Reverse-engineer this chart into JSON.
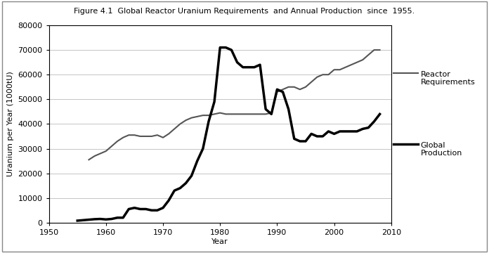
{
  "title": "Figure 4.1  Global Reactor Uranium Requirements  and Annual Production  since  1955.",
  "xlabel": "Year",
  "ylabel": "Uranium per Year (1000tU)",
  "xlim": [
    1950,
    2010
  ],
  "ylim": [
    0,
    80000
  ],
  "yticks": [
    0,
    10000,
    20000,
    30000,
    40000,
    50000,
    60000,
    70000,
    80000
  ],
  "xticks": [
    1950,
    1960,
    1970,
    1980,
    1990,
    2000,
    2010
  ],
  "reactor_requirements": {
    "years": [
      1957,
      1958,
      1959,
      1960,
      1961,
      1962,
      1963,
      1964,
      1965,
      1966,
      1967,
      1968,
      1969,
      1970,
      1971,
      1972,
      1973,
      1974,
      1975,
      1976,
      1977,
      1978,
      1979,
      1980,
      1981,
      1982,
      1983,
      1984,
      1985,
      1986,
      1987,
      1988,
      1989,
      1990,
      1991,
      1992,
      1993,
      1994,
      1995,
      1996,
      1997,
      1998,
      1999,
      2000,
      2001,
      2002,
      2003,
      2004,
      2005,
      2006,
      2007,
      2008
    ],
    "values": [
      25500,
      27000,
      28000,
      29000,
      31000,
      33000,
      34500,
      35500,
      35500,
      35000,
      35000,
      35000,
      35500,
      34500,
      36000,
      38000,
      40000,
      41500,
      42500,
      43000,
      43500,
      43500,
      44000,
      44500,
      44000,
      44000,
      44000,
      44000,
      44000,
      44000,
      44000,
      44000,
      44500,
      53000,
      54000,
      55000,
      55000,
      54000,
      55000,
      57000,
      59000,
      60000,
      60000,
      62000,
      62000,
      63000,
      64000,
      65000,
      66000,
      68000,
      70000,
      70000
    ],
    "color": "#555555",
    "linewidth": 1.5,
    "label": "Reactor\nRequirements"
  },
  "global_production": {
    "years": [
      1955,
      1956,
      1957,
      1958,
      1959,
      1960,
      1961,
      1962,
      1963,
      1964,
      1965,
      1966,
      1967,
      1968,
      1969,
      1970,
      1971,
      1972,
      1973,
      1974,
      1975,
      1976,
      1977,
      1978,
      1979,
      1980,
      1981,
      1982,
      1983,
      1984,
      1985,
      1986,
      1987,
      1988,
      1989,
      1990,
      1991,
      1992,
      1993,
      1994,
      1995,
      1996,
      1997,
      1998,
      1999,
      2000,
      2001,
      2002,
      2003,
      2004,
      2005,
      2006,
      2007,
      2008
    ],
    "values": [
      800,
      1000,
      1200,
      1400,
      1500,
      1300,
      1500,
      2000,
      2000,
      5500,
      6000,
      5500,
      5500,
      5000,
      5000,
      6000,
      9000,
      13000,
      14000,
      16000,
      19000,
      25000,
      30000,
      41000,
      49000,
      71000,
      71000,
      70000,
      65000,
      63000,
      63000,
      63000,
      64000,
      46000,
      44000,
      54000,
      53000,
      46000,
      34000,
      33000,
      33000,
      36000,
      35000,
      35000,
      37000,
      36000,
      37000,
      37000,
      37000,
      37000,
      38000,
      38500,
      41000,
      44000
    ],
    "color": "#000000",
    "linewidth": 2.5,
    "label": "Global\nProduction"
  },
  "background_color": "#ffffff",
  "grid_color": "#bbbbbb",
  "title_fontsize": 8,
  "axis_fontsize": 8,
  "tick_fontsize": 8
}
